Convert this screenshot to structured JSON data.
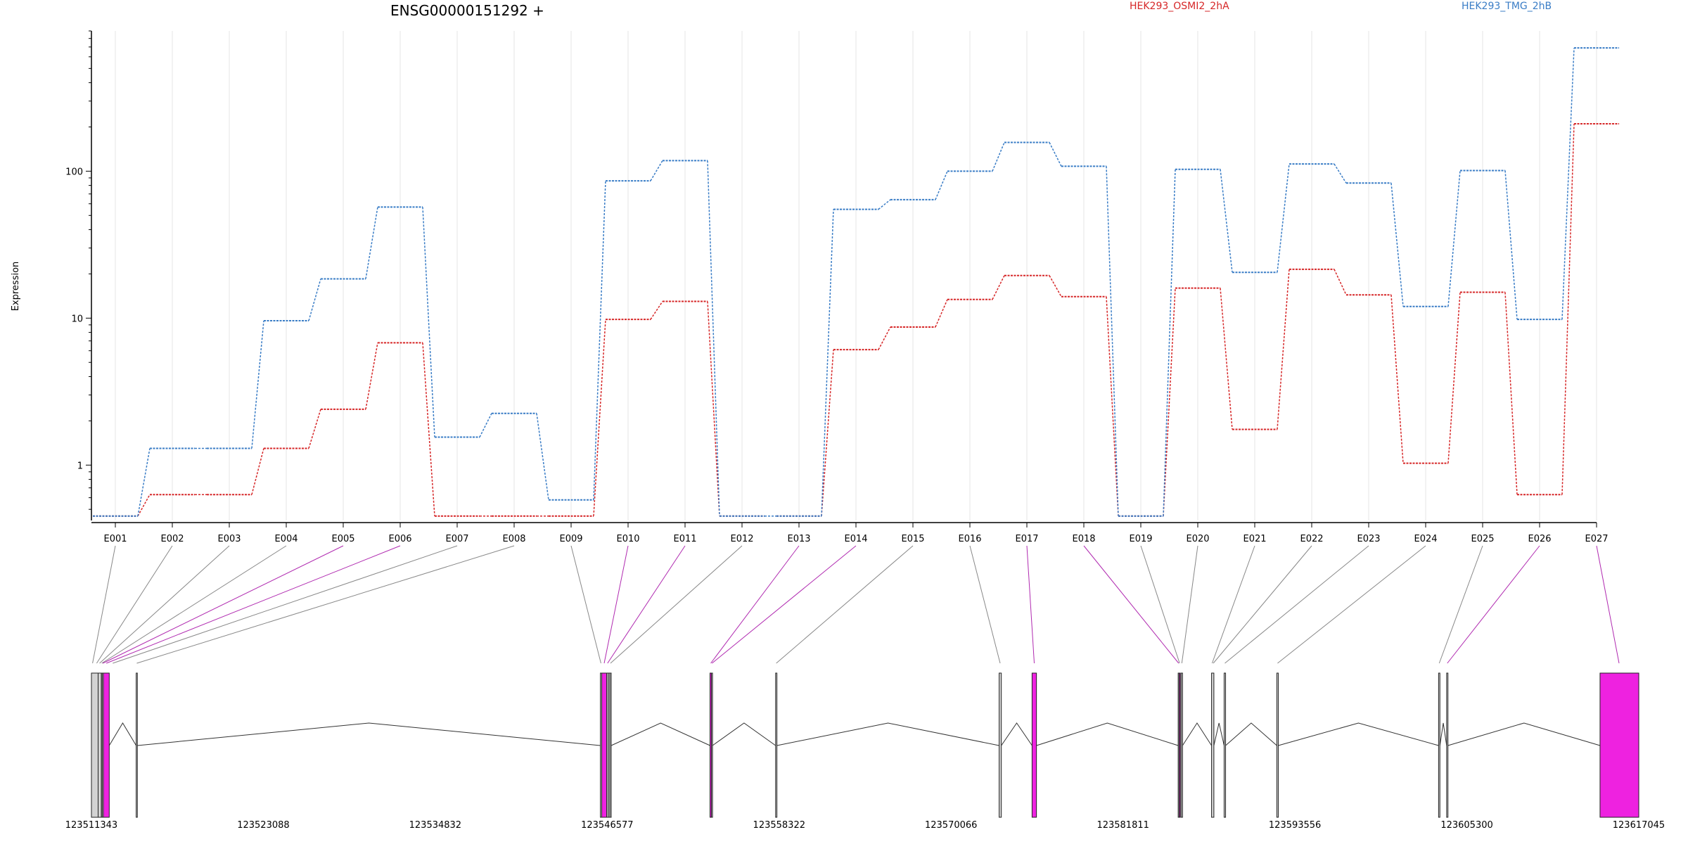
{
  "chart_data": {
    "type": "line",
    "title": "ENSG00000151292 +",
    "ylabel": "Expression",
    "xlabel": "",
    "yscale": "log",
    "ylim": [
      0.42,
      900
    ],
    "yticks": [
      1,
      10,
      100
    ],
    "ytick_labels": [
      "1",
      "10",
      "100"
    ],
    "grid": "vertical",
    "legend_placement": "top",
    "categories": [
      "E001",
      "E002",
      "E003",
      "E004",
      "E005",
      "E006",
      "E007",
      "E008",
      "E009",
      "E010",
      "E011",
      "E012",
      "E013",
      "E014",
      "E015",
      "E016",
      "E017",
      "E018",
      "E019",
      "E020",
      "E021",
      "E022",
      "E023",
      "E024",
      "E025",
      "E026",
      "E027"
    ],
    "series": [
      {
        "name": "HEK293_OSMI2_2hA",
        "color": "#d62728",
        "values": [
          0.45,
          0.63,
          0.63,
          1.3,
          2.4,
          6.8,
          0.45,
          0.45,
          0.45,
          9.8,
          13,
          0.45,
          0.45,
          6.1,
          8.7,
          13.4,
          19.5,
          14,
          0.45,
          16,
          1.75,
          21.5,
          14.4,
          1.03,
          15,
          0.63,
          210
        ]
      },
      {
        "name": "HEK293_TMG_2hB",
        "color": "#3a7dc6",
        "values": [
          0.45,
          1.3,
          1.3,
          9.6,
          18.5,
          57,
          1.55,
          2.25,
          0.58,
          86,
          118,
          0.45,
          0.45,
          55,
          64,
          100,
          157,
          108,
          0.45,
          103,
          20.5,
          112,
          83,
          12,
          101,
          9.8,
          690
        ]
      }
    ],
    "gene_model": {
      "coordinate_labels": [
        "123511343",
        "123523088",
        "123534832",
        "123546577",
        "123558322",
        "123570066",
        "123581811",
        "123593556",
        "123605300",
        "123617045"
      ],
      "exons": [
        {
          "start": 123511343,
          "end": 123511800,
          "highlight": false
        },
        {
          "start": 123511800,
          "end": 123512020,
          "highlight": false
        },
        {
          "start": 123512020,
          "end": 123512080,
          "highlight": false
        },
        {
          "start": 123512080,
          "end": 123512160,
          "highlight": false
        },
        {
          "start": 123512160,
          "end": 123512560,
          "highlight": true
        },
        {
          "start": 123514400,
          "end": 123514480,
          "highlight": false
        },
        {
          "start": 123546110,
          "end": 123546200,
          "highlight": false
        },
        {
          "start": 123546200,
          "end": 123546540,
          "highlight": true
        },
        {
          "start": 123546540,
          "end": 123546650,
          "highlight": false
        },
        {
          "start": 123546650,
          "end": 123546760,
          "highlight": false
        },
        {
          "start": 123546760,
          "end": 123546850,
          "highlight": false
        },
        {
          "start": 123553600,
          "end": 123553700,
          "highlight": true
        },
        {
          "start": 123553700,
          "end": 123553770,
          "highlight": false
        },
        {
          "start": 123558080,
          "end": 123558170,
          "highlight": false
        },
        {
          "start": 123573350,
          "end": 123573500,
          "highlight": false
        },
        {
          "start": 123575600,
          "end": 123575900,
          "highlight": true
        },
        {
          "start": 123585580,
          "end": 123585650,
          "highlight": false
        },
        {
          "start": 123585650,
          "end": 123585710,
          "highlight": true
        },
        {
          "start": 123585780,
          "end": 123585880,
          "highlight": false
        },
        {
          "start": 123587860,
          "end": 123588020,
          "highlight": false
        },
        {
          "start": 123588720,
          "end": 123588820,
          "highlight": false
        },
        {
          "start": 123592320,
          "end": 123592420,
          "highlight": false
        },
        {
          "start": 123603370,
          "end": 123603460,
          "highlight": false
        },
        {
          "start": 123603920,
          "end": 123604010,
          "highlight": false
        },
        {
          "start": 123614400,
          "end": 123617045,
          "highlight": true
        }
      ],
      "exon_mapping": [
        {
          "exon": "E001",
          "target": 123511420,
          "highlight": false
        },
        {
          "exon": "E002",
          "target": 123511700,
          "highlight": false
        },
        {
          "exon": "E003",
          "target": 123511900,
          "highlight": false
        },
        {
          "exon": "E004",
          "target": 123512050,
          "highlight": false
        },
        {
          "exon": "E005",
          "target": 123512120,
          "highlight": true
        },
        {
          "exon": "E006",
          "target": 123512360,
          "highlight": true
        },
        {
          "exon": "E007",
          "target": 123512800,
          "highlight": false
        },
        {
          "exon": "E008",
          "target": 123514440,
          "highlight": false
        },
        {
          "exon": "E009",
          "target": 123546150,
          "highlight": false
        },
        {
          "exon": "E010",
          "target": 123546370,
          "highlight": true
        },
        {
          "exon": "E011",
          "target": 123546600,
          "highlight": true
        },
        {
          "exon": "E012",
          "target": 123546800,
          "highlight": false
        },
        {
          "exon": "E013",
          "target": 123553650,
          "highlight": true
        },
        {
          "exon": "E014",
          "target": 123553735,
          "highlight": true
        },
        {
          "exon": "E015",
          "target": 123558125,
          "highlight": false
        },
        {
          "exon": "E016",
          "target": 123573420,
          "highlight": false
        },
        {
          "exon": "E017",
          "target": 123575750,
          "highlight": true
        },
        {
          "exon": "E018",
          "target": 123585615,
          "highlight": true
        },
        {
          "exon": "E019",
          "target": 123585680,
          "highlight": false
        },
        {
          "exon": "E020",
          "target": 123585830,
          "highlight": false
        },
        {
          "exon": "E021",
          "target": 123587900,
          "highlight": false
        },
        {
          "exon": "E022",
          "target": 123587980,
          "highlight": false
        },
        {
          "exon": "E023",
          "target": 123588770,
          "highlight": false
        },
        {
          "exon": "E024",
          "target": 123592370,
          "highlight": false
        },
        {
          "exon": "E025",
          "target": 123603415,
          "highlight": false
        },
        {
          "exon": "E026",
          "target": 123603965,
          "highlight": true
        },
        {
          "exon": "E027",
          "target": 123615700,
          "highlight": true
        }
      ],
      "highlight_color": "#ee22e0",
      "neutral_exon_color": "#d3d3d3"
    }
  }
}
